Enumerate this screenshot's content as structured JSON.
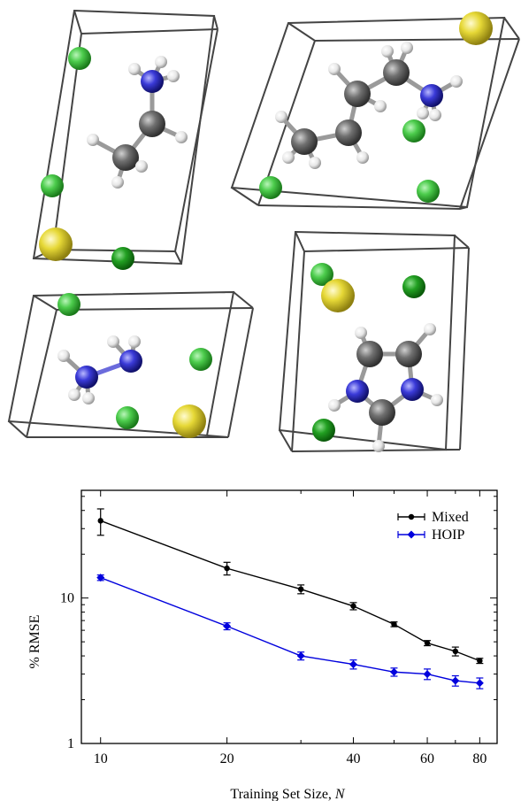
{
  "figure": {
    "panels": [
      {
        "name": "cell-1",
        "molecule": "ethylammonium",
        "atoms": [
          "green-halide",
          "yellow-cation",
          "carbon",
          "nitrogen",
          "hydrogen"
        ]
      },
      {
        "name": "cell-2",
        "molecule": "butylammonium",
        "atoms": [
          "green-halide",
          "yellow-cation",
          "carbon",
          "nitrogen",
          "hydrogen"
        ]
      },
      {
        "name": "cell-3",
        "molecule": "hydrazinium",
        "atoms": [
          "green-halide",
          "yellow-cation",
          "nitrogen",
          "hydrogen"
        ]
      },
      {
        "name": "cell-4",
        "molecule": "imidazolium",
        "atoms": [
          "green-halide",
          "yellow-cation",
          "carbon",
          "nitrogen",
          "hydrogen"
        ]
      }
    ],
    "atom_colors": {
      "halide": "#3cbf3c",
      "cation": "#e0d030",
      "carbon": "#6e6e6e",
      "nitrogen": "#3a3ad8",
      "hydrogen": "#f0f0f0"
    }
  },
  "chart_data": {
    "type": "line",
    "xlabel": "Training Set Size, ",
    "xlabel_var": "N",
    "ylabel": "% RMSE",
    "xscale": "log",
    "yscale": "log",
    "xlim": [
      9,
      88
    ],
    "ylim": [
      1,
      55
    ],
    "xticks": [
      10,
      20,
      40,
      60,
      80
    ],
    "xtick_labels": [
      "10",
      "20",
      "40",
      "60",
      "80"
    ],
    "yticks": [
      1,
      10
    ],
    "ytick_labels": [
      "1",
      "10"
    ],
    "legend": "top-right",
    "grid": false,
    "series": [
      {
        "name": "Mixed",
        "color": "#000000",
        "marker": "circle",
        "x": [
          10,
          20,
          30,
          40,
          50,
          60,
          70,
          80
        ],
        "y": [
          34.0,
          16.0,
          11.5,
          8.8,
          6.6,
          4.9,
          4.3,
          3.7
        ],
        "err": [
          7.0,
          1.6,
          0.8,
          0.5,
          0.25,
          0.2,
          0.3,
          0.15
        ]
      },
      {
        "name": "HOIP",
        "color": "#0000dd",
        "marker": "diamond",
        "x": [
          10,
          20,
          30,
          40,
          50,
          60,
          70,
          80
        ],
        "y": [
          13.8,
          6.4,
          4.0,
          3.5,
          3.1,
          3.0,
          2.7,
          2.6
        ],
        "err": [
          0.6,
          0.35,
          0.25,
          0.25,
          0.2,
          0.25,
          0.22,
          0.22
        ]
      }
    ]
  }
}
